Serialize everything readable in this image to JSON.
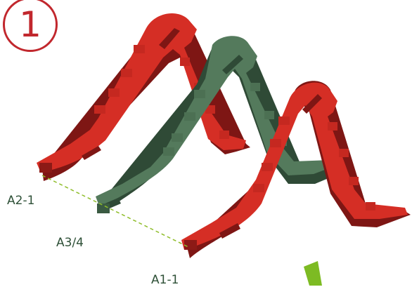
{
  "step": {
    "number": "1"
  },
  "parts": [
    {
      "id": "A2-1",
      "label": "A2-1",
      "color": "#d02a22"
    },
    {
      "id": "A3/4",
      "label": "A3/4",
      "color": "#507558"
    },
    {
      "id": "A1-1",
      "label": "A1-1",
      "color": "#d02a22"
    }
  ],
  "colors": {
    "red_top": "#d52e25",
    "red_side": "#7e1614",
    "green_top": "#547a5c",
    "green_side": "#2f4a36",
    "guide_line": "#8fbd2a",
    "step_accent": "#c1272d",
    "label_text": "#2e5037",
    "arrow": "#7dbb23"
  },
  "icons": {
    "step": "step-number-circle",
    "guide": "alignment-dashed-line",
    "arrow": "insert-direction-arrow"
  }
}
